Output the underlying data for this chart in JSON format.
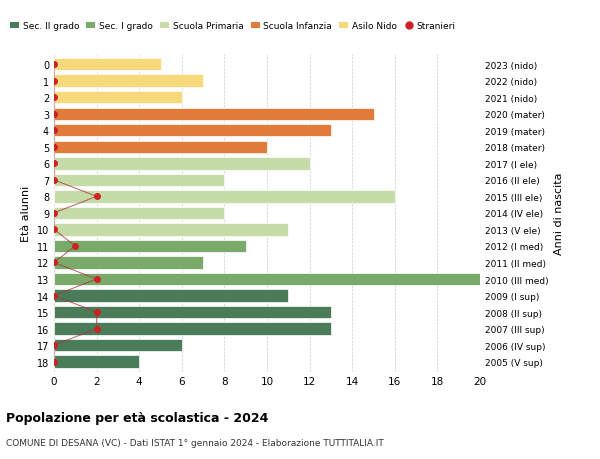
{
  "ages": [
    18,
    17,
    16,
    15,
    14,
    13,
    12,
    11,
    10,
    9,
    8,
    7,
    6,
    5,
    4,
    3,
    2,
    1,
    0
  ],
  "years_labels": [
    "2005 (V sup)",
    "2006 (IV sup)",
    "2007 (III sup)",
    "2008 (II sup)",
    "2009 (I sup)",
    "2010 (III med)",
    "2011 (II med)",
    "2012 (I med)",
    "2013 (V ele)",
    "2014 (IV ele)",
    "2015 (III ele)",
    "2016 (II ele)",
    "2017 (I ele)",
    "2018 (mater)",
    "2019 (mater)",
    "2020 (mater)",
    "2021 (nido)",
    "2022 (nido)",
    "2023 (nido)"
  ],
  "bar_values": [
    4,
    6,
    13,
    13,
    11,
    20,
    7,
    9,
    11,
    8,
    16,
    8,
    12,
    10,
    13,
    15,
    6,
    7,
    5
  ],
  "bar_colors": [
    "#4a7c59",
    "#4a7c59",
    "#4a7c59",
    "#4a7c59",
    "#4a7c59",
    "#7aaa6a",
    "#7aaa6a",
    "#7aaa6a",
    "#c5dba8",
    "#c5dba8",
    "#c5dba8",
    "#c5dba8",
    "#c5dba8",
    "#e07b39",
    "#e07b39",
    "#e07b39",
    "#f5d97a",
    "#f5d97a",
    "#f5d97a"
  ],
  "stranieri_x": [
    0,
    0,
    2,
    2,
    0,
    2,
    0,
    1,
    0,
    0,
    2,
    0,
    0,
    0,
    0,
    0,
    0,
    0,
    0
  ],
  "xlim": [
    0,
    20
  ],
  "xticks": [
    0,
    2,
    4,
    6,
    8,
    10,
    12,
    14,
    16,
    18,
    20
  ],
  "legend_labels": [
    "Sec. II grado",
    "Sec. I grado",
    "Scuola Primaria",
    "Scuola Infanzia",
    "Asilo Nido",
    "Stranieri"
  ],
  "legend_colors": [
    "#4a7c59",
    "#7aaa6a",
    "#c5dba8",
    "#e07b39",
    "#f5d97a",
    "#cc2222"
  ],
  "ylabel_left": "Età alunni",
  "ylabel_right": "Anni di nascita",
  "title": "Popolazione per età scolastica - 2024",
  "subtitle": "COMUNE DI DESANA (VC) - Dati ISTAT 1° gennaio 2024 - Elaborazione TUTTITALIA.IT",
  "bar_height": 0.75,
  "background_color": "#ffffff",
  "grid_color": "#cccccc"
}
